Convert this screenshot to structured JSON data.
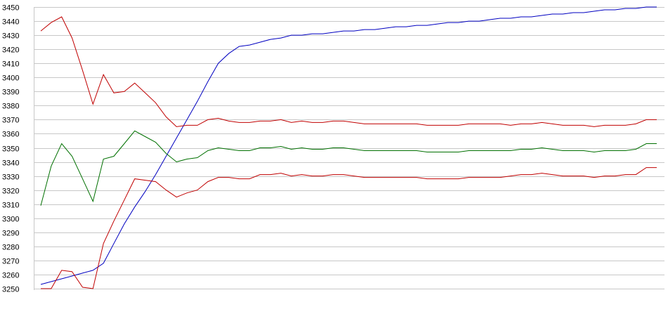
{
  "chart_data": {
    "type": "line",
    "title": "",
    "xlabel": "",
    "ylabel": "",
    "ylim": [
      3250,
      3450
    ],
    "yticks": [
      3450,
      3440,
      3430,
      3420,
      3410,
      3400,
      3390,
      3380,
      3370,
      3360,
      3350,
      3340,
      3330,
      3320,
      3310,
      3300,
      3290,
      3280,
      3270,
      3260,
      3250
    ],
    "grid": true,
    "legend": "none",
    "x": [
      1,
      2,
      3,
      4,
      5,
      6,
      7,
      8,
      9,
      10,
      11,
      12,
      13,
      14,
      15,
      16,
      17,
      18,
      19,
      20,
      21,
      22,
      23,
      24,
      25,
      26,
      27,
      28,
      29,
      30,
      31,
      32,
      33,
      34,
      35,
      36,
      37,
      38,
      39,
      40,
      41,
      42,
      43,
      44,
      45,
      46,
      47,
      48,
      49,
      50,
      51,
      52,
      53,
      54,
      55,
      56,
      57,
      58,
      59,
      60
    ],
    "series": [
      {
        "color": "#0000c0",
        "values": [
          3253,
          3255,
          3257,
          3259,
          3261,
          3263,
          3268,
          3282,
          3296,
          3308,
          3319,
          3331,
          3344,
          3357,
          3370,
          3383,
          3397,
          3410,
          3417,
          3422,
          3423,
          3425,
          3427,
          3428,
          3430,
          3430,
          3431,
          3431,
          3432,
          3433,
          3433,
          3434,
          3434,
          3435,
          3436,
          3436,
          3437,
          3437,
          3438,
          3439,
          3439,
          3440,
          3440,
          3441,
          3442,
          3442,
          3443,
          3443,
          3444,
          3445,
          3445,
          3446,
          3446,
          3447,
          3448,
          3448,
          3449,
          3449,
          3450,
          3450
        ]
      },
      {
        "color": "#c00000",
        "values": [
          3433,
          3439,
          3443,
          3428,
          3405,
          3381,
          3402,
          3389,
          3390,
          3396,
          3389,
          3382,
          3372,
          3365,
          3366,
          3366,
          3370,
          3371,
          3369,
          3368,
          3368,
          3369,
          3369,
          3370,
          3368,
          3369,
          3368,
          3368,
          3369,
          3369,
          3368,
          3367,
          3367,
          3367,
          3367,
          3367,
          3367,
          3366,
          3366,
          3366,
          3366,
          3367,
          3367,
          3367,
          3367,
          3366,
          3367,
          3367,
          3368,
          3367,
          3366,
          3366,
          3366,
          3365,
          3366,
          3366,
          3366,
          3367,
          3370,
          3370
        ]
      },
      {
        "color": "#007000",
        "values": [
          3309,
          3337,
          3353,
          3344,
          3328,
          3312,
          3342,
          3344,
          3353,
          3362,
          3358,
          3354,
          3346,
          3340,
          3342,
          3343,
          3348,
          3350,
          3349,
          3348,
          3348,
          3350,
          3350,
          3351,
          3349,
          3350,
          3349,
          3349,
          3350,
          3350,
          3349,
          3348,
          3348,
          3348,
          3348,
          3348,
          3348,
          3347,
          3347,
          3347,
          3347,
          3348,
          3348,
          3348,
          3348,
          3348,
          3349,
          3349,
          3350,
          3349,
          3348,
          3348,
          3348,
          3347,
          3348,
          3348,
          3348,
          3349,
          3353,
          3353
        ]
      },
      {
        "color": "#c00000",
        "values": [
          3250,
          3250,
          3263,
          3262,
          3251,
          3250,
          3282,
          3298,
          3313,
          3328,
          3327,
          3326,
          3320,
          3315,
          3318,
          3320,
          3326,
          3329,
          3329,
          3328,
          3328,
          3331,
          3331,
          3332,
          3330,
          3331,
          3330,
          3330,
          3331,
          3331,
          3330,
          3329,
          3329,
          3329,
          3329,
          3329,
          3329,
          3328,
          3328,
          3328,
          3328,
          3329,
          3329,
          3329,
          3329,
          3330,
          3331,
          3331,
          3332,
          3331,
          3330,
          3330,
          3330,
          3329,
          3330,
          3330,
          3331,
          3331,
          3336,
          3336
        ]
      }
    ]
  }
}
